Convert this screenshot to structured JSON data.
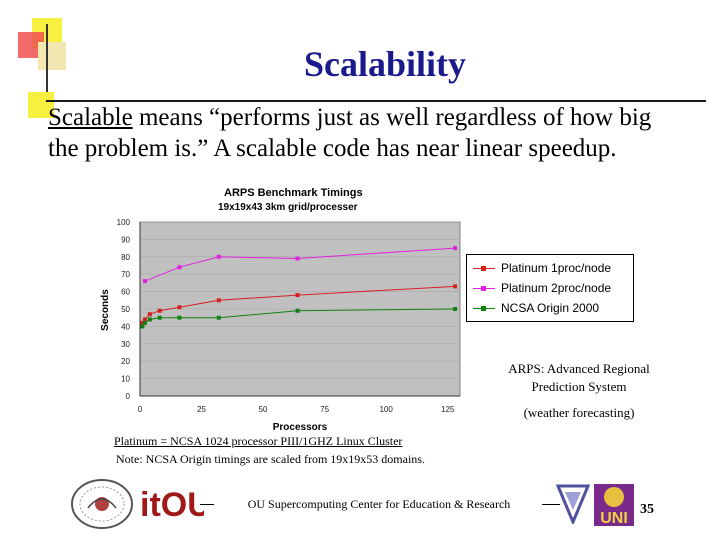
{
  "slide": {
    "title": "Scalability",
    "body_underlined": "Scalable",
    "body_rest": " means “performs just as well regardless of how big the problem is.” A scalable code has near linear speedup.",
    "arps_definition": "ARPS: Advanced Regional Prediction System",
    "weather": "(weather forecasting)",
    "platinum_note": "Platinum = NCSA 1024 processor PIII/1GHZ Linux Cluster",
    "origin_note": "Note: NCSA Origin timings are scaled from 19x19x53 domains.",
    "footer": "OU Supercomputing Center for Education & Research",
    "page_number": "35",
    "logo_it": "itOU",
    "logo_uni": "UNI"
  },
  "colors": {
    "title": "#1a1a8c",
    "plot_bg": "#c0c0c0",
    "platinum_1proc": "#d62020",
    "platinum_2proc": "#e020e0",
    "ncsa_origin": "#108010"
  },
  "chart_data": {
    "type": "line",
    "title": "ARPS Benchmark Timings",
    "subtitle": "19x19x43 3km grid/processer",
    "xlabel": "Processors",
    "ylabel": "Seconds",
    "xlim": [
      0,
      130
    ],
    "ylim": [
      0,
      100
    ],
    "xticks": [
      "0",
      "25",
      "50",
      "75",
      "100",
      "125"
    ],
    "yticks": [
      "0",
      "10",
      "20",
      "30",
      "40",
      "50",
      "60",
      "70",
      "80",
      "90",
      "100"
    ],
    "series": [
      {
        "name": "Platinum 1proc/node",
        "color": "#d62020",
        "x": [
          1,
          2,
          4,
          8,
          16,
          32,
          64,
          128
        ],
        "y": [
          42,
          44,
          47,
          49,
          51,
          55,
          58,
          63
        ]
      },
      {
        "name": "Platinum 2proc/node",
        "color": "#e020e0",
        "x": [
          2,
          16,
          32,
          64,
          128
        ],
        "y": [
          66,
          74,
          80,
          79,
          85
        ]
      },
      {
        "name": "NCSA Origin 2000",
        "color": "#108010",
        "x": [
          1,
          2,
          4,
          8,
          16,
          32,
          64,
          128
        ],
        "y": [
          40,
          42,
          44,
          45,
          45,
          45,
          49,
          50
        ]
      }
    ]
  }
}
